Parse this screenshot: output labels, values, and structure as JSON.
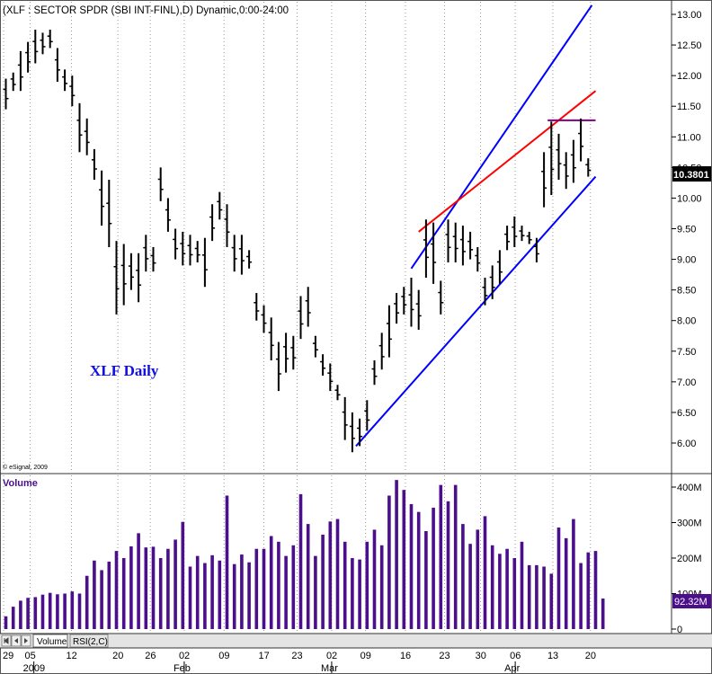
{
  "header": {
    "title": "(XLF : SECTOR SPDR (SBI INT-FINL),D) Dynamic,0:00-24:00"
  },
  "annotation": "XLF Daily",
  "copyright": "© eSignal, 2009",
  "volume_label": "Volume",
  "tabs": [
    {
      "label": "Volume"
    },
    {
      "label": "RSI(2,C)"
    }
  ],
  "x_axis": {
    "day_labels": [
      "29",
      "05",
      "12",
      "20",
      "26",
      "02",
      "09",
      "17",
      "23",
      "02",
      "09",
      "16",
      "23",
      "30",
      "06",
      "13",
      "20"
    ],
    "month_labels": [
      "2009",
      "Feb",
      "Mar",
      "Apr"
    ]
  },
  "price_axis": {
    "ticks": [
      "6.00",
      "6.50",
      "7.00",
      "7.50",
      "8.00",
      "8.50",
      "9.00",
      "9.50",
      "10.00",
      "10.50",
      "11.00",
      "11.50",
      "12.00",
      "12.50",
      "13.00"
    ],
    "last_label": "10.3801"
  },
  "volume_axis": {
    "ticks": [
      "0",
      "100M",
      "200M",
      "300M",
      "400M"
    ],
    "last_label": "92.32M"
  },
  "colors": {
    "bars": "#000000",
    "volume": "#4b0f8c",
    "channel": "#0000ff",
    "trendline": "#ff0000",
    "resistance": "#800080",
    "grid": "#9a9a9a"
  },
  "chart_data": [
    {
      "type": "ohlc",
      "ylim": [
        5.75,
        13.15
      ],
      "series": [
        {
          "ohlc": [
            {
              "high": 11.95,
              "low": 11.45
            },
            {
              "high": 12.05,
              "low": 11.75
            },
            {
              "high": 12.4,
              "low": 11.75
            },
            {
              "high": 12.55,
              "low": 12.05
            },
            {
              "high": 12.75,
              "low": 12.2
            },
            {
              "high": 12.7,
              "low": 12.35
            },
            {
              "high": 12.75,
              "low": 12.45
            },
            {
              "high": 12.45,
              "low": 11.9
            },
            {
              "high": 12.1,
              "low": 11.75
            },
            {
              "high": 12.0,
              "low": 11.5
            },
            {
              "high": 11.55,
              "low": 10.75
            },
            {
              "high": 11.3,
              "low": 10.7
            },
            {
              "high": 10.8,
              "low": 10.3
            },
            {
              "high": 10.45,
              "low": 9.55
            },
            {
              "high": 10.3,
              "low": 9.2
            },
            {
              "high": 9.3,
              "low": 8.1
            },
            {
              "high": 9.25,
              "low": 8.25
            },
            {
              "high": 9.1,
              "low": 8.5
            },
            {
              "high": 9.1,
              "low": 8.3
            },
            {
              "high": 9.4,
              "low": 8.8
            },
            {
              "high": 9.2,
              "low": 8.8
            },
            {
              "high": 10.5,
              "low": 9.95
            },
            {
              "high": 10.0,
              "low": 9.45
            },
            {
              "high": 9.5,
              "low": 9.0
            },
            {
              "high": 9.45,
              "low": 8.9
            },
            {
              "high": 9.4,
              "low": 8.9
            },
            {
              "high": 9.3,
              "low": 8.95
            },
            {
              "high": 9.35,
              "low": 8.55
            },
            {
              "high": 9.9,
              "low": 9.3
            },
            {
              "high": 10.1,
              "low": 9.65
            },
            {
              "high": 9.9,
              "low": 9.2
            },
            {
              "high": 9.4,
              "low": 8.8
            },
            {
              "high": 9.4,
              "low": 8.75
            },
            {
              "high": 9.15,
              "low": 8.85
            },
            {
              "high": 8.45,
              "low": 8.0
            },
            {
              "high": 8.25,
              "low": 7.8
            },
            {
              "high": 8.05,
              "low": 7.35
            },
            {
              "high": 7.65,
              "low": 6.85
            },
            {
              "high": 7.8,
              "low": 7.15
            },
            {
              "high": 7.75,
              "low": 7.2
            },
            {
              "high": 8.4,
              "low": 7.7
            },
            {
              "high": 8.55,
              "low": 7.9
            },
            {
              "high": 7.75,
              "low": 7.4
            },
            {
              "high": 7.45,
              "low": 7.1
            },
            {
              "high": 7.3,
              "low": 6.85
            },
            {
              "high": 6.95,
              "low": 6.7
            },
            {
              "high": 6.75,
              "low": 6.05
            },
            {
              "high": 6.5,
              "low": 5.85
            },
            {
              "high": 6.4,
              "low": 5.95
            },
            {
              "high": 6.7,
              "low": 6.2
            },
            {
              "high": 7.35,
              "low": 6.95
            },
            {
              "high": 7.8,
              "low": 7.2
            },
            {
              "high": 8.25,
              "low": 7.4
            },
            {
              "high": 8.45,
              "low": 7.95
            },
            {
              "high": 8.55,
              "low": 8.1
            },
            {
              "high": 8.7,
              "low": 7.9
            },
            {
              "high": 8.5,
              "low": 7.85
            },
            {
              "high": 9.65,
              "low": 8.7
            },
            {
              "high": 9.6,
              "low": 8.6
            },
            {
              "high": 8.65,
              "low": 8.1
            },
            {
              "high": 9.65,
              "low": 8.95
            },
            {
              "high": 9.6,
              "low": 8.95
            },
            {
              "high": 9.55,
              "low": 8.9
            },
            {
              "high": 9.45,
              "low": 9.0
            },
            {
              "high": 9.2,
              "low": 8.8
            },
            {
              "high": 8.7,
              "low": 8.25
            },
            {
              "high": 8.9,
              "low": 8.35
            },
            {
              "high": 9.15,
              "low": 8.6
            },
            {
              "high": 9.55,
              "low": 9.15
            },
            {
              "high": 9.7,
              "low": 9.2
            },
            {
              "high": 9.55,
              "low": 9.3
            },
            {
              "high": 9.45,
              "low": 9.25
            },
            {
              "high": 9.35,
              "low": 8.95
            },
            {
              "high": 10.75,
              "low": 9.85
            },
            {
              "high": 11.25,
              "low": 10.05
            },
            {
              "high": 11.05,
              "low": 10.3
            },
            {
              "high": 10.75,
              "low": 10.15
            },
            {
              "high": 10.95,
              "low": 10.25
            },
            {
              "high": 11.3,
              "low": 10.6
            },
            {
              "high": 10.65,
              "low": 10.35
            }
          ]
        }
      ],
      "lines": [
        {
          "name": "channel-upper",
          "points": [
            {
              "x": 55,
              "y": 8.85
            },
            {
              "x": 79.5,
              "y": 13.15
            }
          ]
        },
        {
          "name": "channel-lower",
          "points": [
            {
              "x": 47.5,
              "y": 5.95
            },
            {
              "x": 80,
              "y": 10.35
            }
          ]
        },
        {
          "name": "trendline",
          "points": [
            {
              "x": 56,
              "y": 9.45
            },
            {
              "x": 80,
              "y": 11.75
            }
          ]
        },
        {
          "name": "resistance",
          "points": [
            {
              "x": 73.5,
              "y": 11.27
            },
            {
              "x": 80,
              "y": 11.27
            }
          ]
        }
      ]
    },
    {
      "type": "bar",
      "ylim": [
        0,
        420
      ],
      "series": [
        {
          "values": [
            36,
            63,
            80,
            88,
            90,
            97,
            102,
            98,
            100,
            106,
            100,
            150,
            193,
            166,
            190,
            220,
            200,
            233,
            270,
            230,
            232,
            200,
            226,
            252,
            302,
            176,
            206,
            186,
            208,
            193,
            376,
            183,
            210,
            188,
            226,
            226,
            262,
            246,
            206,
            236,
            380,
            296,
            206,
            266,
            303,
            310,
            246,
            200,
            196,
            246,
            280,
            236,
            376,
            420,
            392,
            352,
            330,
            276,
            342,
            406,
            360,
            406,
            296,
            240,
            280,
            318,
            236,
            212,
            226,
            200,
            246,
            180,
            180,
            176,
            156,
            286,
            256,
            310,
            186,
            216,
            220,
            86
          ]
        }
      ]
    }
  ]
}
